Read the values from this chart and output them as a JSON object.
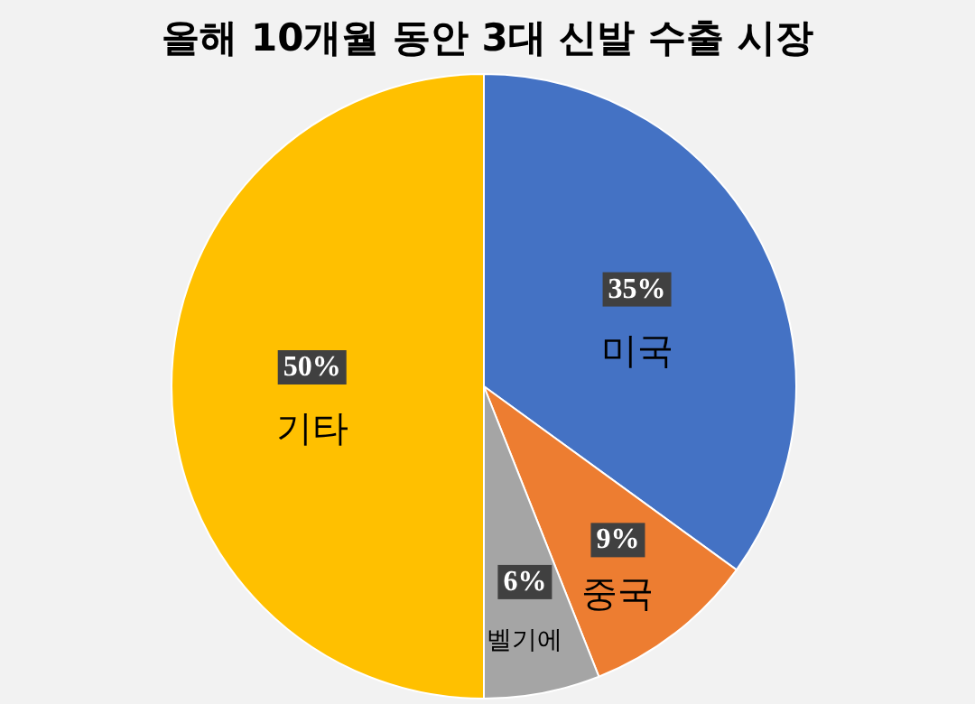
{
  "chart_data": {
    "type": "pie",
    "title": "올해 10개월 동안 3대 신발 수출 시장",
    "categories": [
      "미국",
      "중국",
      "벨기에",
      "기타"
    ],
    "values": [
      35,
      9,
      6,
      50
    ],
    "value_labels": [
      "35%",
      "9%",
      "6%",
      "50%"
    ],
    "colors": [
      "#4472c4",
      "#ed7d31",
      "#a5a5a5",
      "#ffc000"
    ],
    "legend": false
  }
}
